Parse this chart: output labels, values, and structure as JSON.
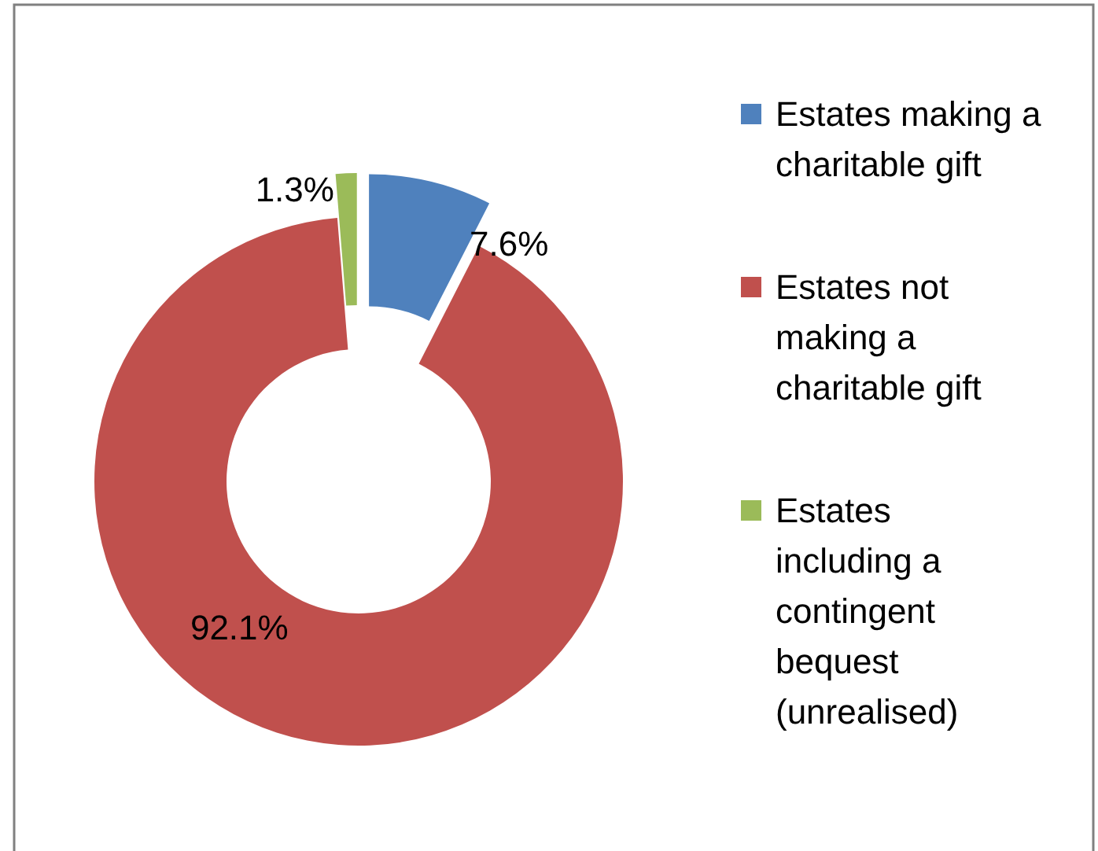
{
  "chart_data": {
    "type": "donut",
    "categories": [
      "Estates making a charitable gift",
      "Estates not making a charitable gift",
      "Estates including a contingent bequest (unrealised)"
    ],
    "values": [
      7.6,
      92.1,
      1.3
    ],
    "colors": [
      "#4f81bd",
      "#c0504d",
      "#9bbb59"
    ],
    "value_labels": [
      "7.6%",
      "92.1%",
      "1.3%"
    ],
    "legend": "right"
  }
}
